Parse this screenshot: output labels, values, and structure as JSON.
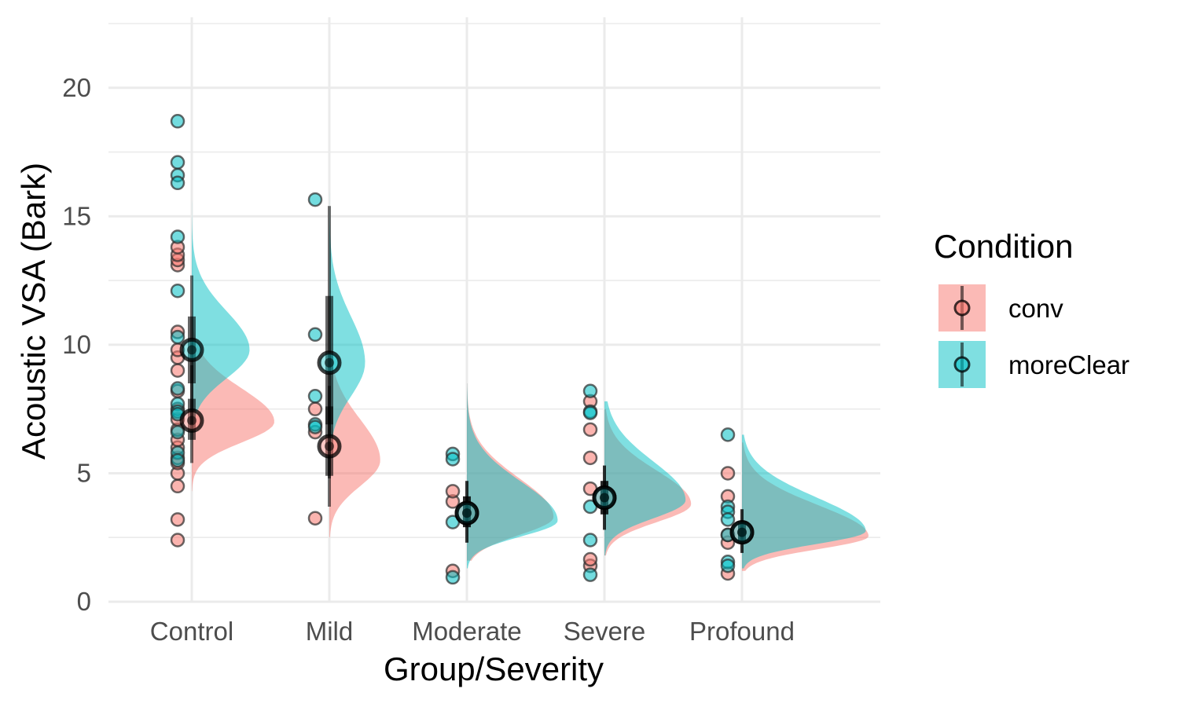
{
  "chart_data": {
    "type": "raincloud",
    "xlabel": "Group/Severity",
    "ylabel": "Acoustic VSA (Bark)",
    "ylim": [
      0,
      22.5
    ],
    "yticks": [
      0,
      5,
      10,
      15,
      20
    ],
    "categories": [
      "Control",
      "Mild",
      "Moderate",
      "Severe",
      "Profound"
    ],
    "legend": {
      "title": "Condition",
      "position": "right"
    },
    "grid": true,
    "series": [
      {
        "name": "conv",
        "color": "#F8766D",
        "groups": [
          {
            "category": "Control",
            "mean": 7.05,
            "ci_inner": [
              6.3,
              7.9
            ],
            "ci_outer": [
              5.4,
              9.2
            ],
            "density": {
              "range": [
                4.3,
                13.5
              ],
              "peak": 7.0,
              "spread_low": 0.8,
              "spread_high": 1.3,
              "max_width": 0.6
            },
            "points": [
              2.4,
              3.2,
              4.5,
              5.0,
              5.4,
              5.6,
              6.0,
              6.3,
              6.7,
              7.1,
              7.5,
              8.2,
              9.0,
              9.5,
              9.8,
              10.5,
              13.1,
              13.3,
              13.5,
              13.8
            ]
          },
          {
            "category": "Mild",
            "mean": 6.05,
            "ci_inner": [
              4.9,
              7.6
            ],
            "ci_outer": [
              3.7,
              8.4
            ],
            "density": {
              "range": [
                2.5,
                11.5
              ],
              "peak": 5.5,
              "spread_low": 1.0,
              "spread_high": 1.6,
              "max_width": 0.37
            },
            "points": [
              3.25,
              6.6,
              7.5
            ]
          },
          {
            "category": "Moderate",
            "mean": 3.45,
            "ci_inner": [
              2.9,
              4.1
            ],
            "ci_outer": [
              2.3,
              4.7
            ],
            "density": {
              "range": [
                1.6,
                8.5
              ],
              "peak": 3.3,
              "spread_low": 0.7,
              "spread_high": 1.5,
              "max_width": 0.63
            },
            "points": [
              1.2,
              3.9,
              4.3
            ]
          },
          {
            "category": "Severe",
            "mean": 4.05,
            "ci_inner": [
              3.4,
              4.7
            ],
            "ci_outer": [
              2.8,
              5.3
            ],
            "density": {
              "range": [
                1.8,
                7.5
              ],
              "peak": 3.8,
              "spread_low": 0.7,
              "spread_high": 1.3,
              "max_width": 0.63
            },
            "points": [
              1.4,
              1.65,
              4.4,
              5.6,
              6.7,
              7.8
            ]
          },
          {
            "category": "Profound",
            "mean": 2.7,
            "ci_inner": [
              2.3,
              3.1
            ],
            "ci_outer": [
              1.9,
              3.6
            ],
            "density": {
              "range": [
                1.2,
                6.2
              ],
              "peak": 2.55,
              "spread_low": 0.5,
              "spread_high": 1.2,
              "max_width": 0.92
            },
            "points": [
              1.1,
              2.3,
              2.6,
              4.1,
              5.0
            ]
          }
        ]
      },
      {
        "name": "moreClear",
        "color": "#00BFC4",
        "groups": [
          {
            "category": "Control",
            "mean": 9.8,
            "ci_inner": [
              8.5,
              11.1
            ],
            "ci_outer": [
              6.9,
              12.7
            ],
            "density": {
              "range": [
                5.0,
                15.9
              ],
              "peak": 9.8,
              "spread_low": 1.1,
              "spread_high": 1.5,
              "max_width": 0.42
            },
            "points": [
              18.7,
              17.1,
              16.6,
              16.3,
              14.2,
              12.1,
              10.3,
              8.3,
              7.7,
              7.4,
              7.3,
              6.6,
              5.8,
              5.5
            ]
          },
          {
            "category": "Mild",
            "mean": 9.3,
            "ci_inner": [
              6.9,
              11.9
            ],
            "ci_outer": [
              4.8,
              15.4
            ],
            "density": {
              "range": [
                4.5,
                20.7
              ],
              "peak": 9.3,
              "spread_low": 1.3,
              "spread_high": 1.8,
              "max_width": 0.26
            },
            "points": [
              15.65,
              10.4,
              8.0,
              6.9,
              6.8
            ]
          },
          {
            "category": "Moderate",
            "mean": 3.45,
            "ci_inner": [
              2.9,
              4.1
            ],
            "ci_outer": [
              2.3,
              4.7
            ],
            "density": {
              "range": [
                1.3,
                8.5
              ],
              "peak": 3.15,
              "spread_low": 0.6,
              "spread_high": 1.5,
              "max_width": 0.66
            },
            "points": [
              5.75,
              5.55,
              3.1,
              0.95
            ]
          },
          {
            "category": "Severe",
            "mean": 4.05,
            "ci_inner": [
              3.4,
              4.7
            ],
            "ci_outer": [
              2.8,
              5.3
            ],
            "density": {
              "range": [
                1.8,
                7.8
              ],
              "peak": 3.95,
              "spread_low": 0.7,
              "spread_high": 1.5,
              "max_width": 0.59
            },
            "points": [
              8.2,
              7.4,
              7.35,
              3.7,
              2.4,
              1.05
            ]
          },
          {
            "category": "Profound",
            "mean": 2.7,
            "ci_inner": [
              2.3,
              3.1
            ],
            "ci_outer": [
              1.9,
              3.6
            ],
            "density": {
              "range": [
                1.3,
                6.5
              ],
              "peak": 2.75,
              "spread_low": 0.5,
              "spread_high": 1.3,
              "max_width": 0.9
            },
            "points": [
              6.5,
              3.7,
              3.5,
              3.2,
              2.6,
              1.55,
              1.4
            ]
          }
        ]
      }
    ]
  }
}
